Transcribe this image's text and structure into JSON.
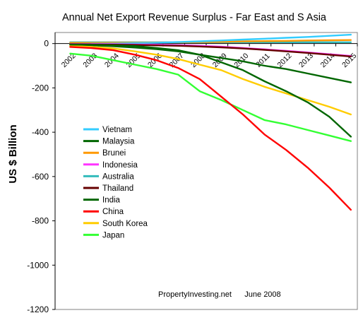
{
  "chart_data": {
    "type": "line",
    "title": "Annual Net Export Revenue Surplus -  Far East and S Asia",
    "xlabel": "",
    "ylabel": "US $ Billion",
    "x": [
      "2002",
      "2003",
      "2004",
      "2005",
      "2006",
      "2007",
      "2008",
      "2009",
      "2010",
      "2011",
      "2012",
      "2013",
      "2014",
      "2015"
    ],
    "ylim": [
      -1200,
      0
    ],
    "yticks": [
      0,
      -200,
      -400,
      -600,
      -800,
      -1000,
      -1200
    ],
    "legend_position": "left-center",
    "annotation": "PropertyInvesting.net      June 2008",
    "series": [
      {
        "name": "Vietnam",
        "color": "#33ccff",
        "values": [
          -2,
          -1,
          0,
          2,
          4,
          7,
          10,
          14,
          18,
          22,
          26,
          30,
          35,
          40
        ]
      },
      {
        "name": "Malaysia",
        "color": "#006600",
        "values": [
          -5,
          -6,
          -8,
          -11,
          -20,
          -30,
          -50,
          -85,
          -120,
          -170,
          -215,
          -265,
          -330,
          -420
        ]
      },
      {
        "name": "Brunei",
        "color": "#ff9900",
        "values": [
          3,
          3,
          4,
          4,
          5,
          6,
          7,
          8,
          10,
          11,
          12,
          14,
          15,
          16
        ]
      },
      {
        "name": "Indonesia",
        "color": "#ff33ff",
        "values": [
          -2,
          -2,
          -3,
          -4,
          -5,
          -7,
          -10,
          -14,
          -20,
          -26,
          -33,
          -40,
          -48,
          -56
        ]
      },
      {
        "name": "Australia",
        "color": "#33bbbb",
        "values": [
          6,
          6,
          6,
          6,
          6,
          6,
          6,
          6,
          6,
          6,
          6,
          6,
          6,
          6
        ]
      },
      {
        "name": "Thailand",
        "color": "#660000",
        "values": [
          -3,
          -4,
          -5,
          -6,
          -8,
          -10,
          -13,
          -17,
          -22,
          -28,
          -35,
          -42,
          -50,
          -58
        ]
      },
      {
        "name": "India",
        "color": "#006600",
        "values": [
          -5,
          -8,
          -12,
          -18,
          -25,
          -35,
          -50,
          -65,
          -80,
          -100,
          -115,
          -135,
          -155,
          -175
        ]
      },
      {
        "name": "China",
        "color": "#ff0000",
        "values": [
          -15,
          -20,
          -30,
          -50,
          -75,
          -110,
          -160,
          -240,
          -320,
          -410,
          -480,
          -560,
          -650,
          -750
        ]
      },
      {
        "name": "South Korea",
        "color": "#ffcc00",
        "values": [
          -10,
          -15,
          -22,
          -35,
          -50,
          -70,
          -95,
          -120,
          -160,
          -195,
          -225,
          -255,
          -285,
          -320
        ]
      },
      {
        "name": "Japan",
        "color": "#33ff33",
        "values": [
          -45,
          -55,
          -75,
          -95,
          -115,
          -140,
          -215,
          -255,
          -300,
          -345,
          -365,
          -390,
          -415,
          -440
        ]
      }
    ]
  }
}
